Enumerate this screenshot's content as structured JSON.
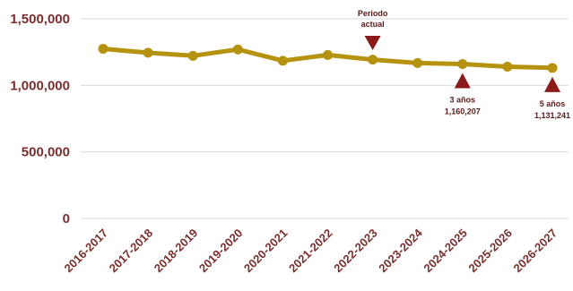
{
  "chart_data": {
    "type": "line",
    "title": "",
    "xlabel": "",
    "ylabel": "",
    "categories": [
      "2016-2017",
      "2017-2018",
      "2018-2019",
      "2019-2020",
      "2020-2021",
      "2021-2022",
      "2022-2023",
      "2023-2024",
      "2024-2025",
      "2025-2026",
      "2026-2027"
    ],
    "series": [
      {
        "values": [
          1275000,
          1245000,
          1222000,
          1270000,
          1185000,
          1228000,
          1193000,
          1168000,
          1160207,
          1140000,
          1131241
        ]
      }
    ],
    "ylim": [
      0,
      1500000
    ],
    "yticks": [
      0,
      500000,
      1000000,
      1500000
    ],
    "ytick_labels": [
      "0",
      "500,000",
      "1,000,000",
      "1,500,000"
    ],
    "grid": true,
    "colors": {
      "line": "#b5920f",
      "marker": "#8b1a1a",
      "text": "#7a2e2e"
    },
    "annotations": [
      {
        "category_index": 6,
        "direction": "down",
        "lines": [
          "Periodo",
          "actual"
        ]
      },
      {
        "category_index": 8,
        "direction": "up",
        "lines": [
          "3 años",
          "1,160,207"
        ]
      },
      {
        "category_index": 10,
        "direction": "up",
        "lines": [
          "5 años",
          "1,131,241"
        ]
      }
    ]
  }
}
